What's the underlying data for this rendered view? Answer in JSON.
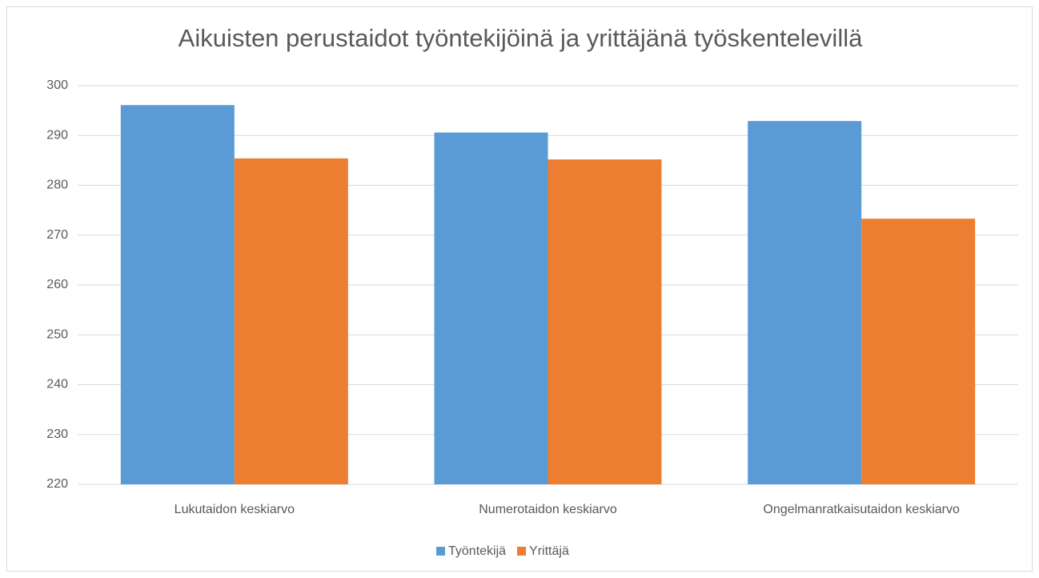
{
  "chart_data": {
    "type": "bar",
    "title": "Aikuisten perustaidot työntekijöinä ja yrittäjänä työskentelevillä",
    "categories": [
      "Lukutaidon keskiarvo",
      "Numerotaidon keskiarvo",
      "Ongelmanratkaisutaidon keskiarvo"
    ],
    "series": [
      {
        "name": "Työntekijä",
        "color": "#5b9bd5",
        "values": [
          296.1,
          290.6,
          292.9
        ]
      },
      {
        "name": "Yrittäjä",
        "color": "#ed7d31",
        "values": [
          285.4,
          285.2,
          273.3
        ]
      }
    ],
    "ylim": [
      220,
      300
    ],
    "yticks": [
      220,
      230,
      240,
      250,
      260,
      270,
      280,
      290,
      300
    ],
    "grid": true,
    "legend": "bottom"
  }
}
